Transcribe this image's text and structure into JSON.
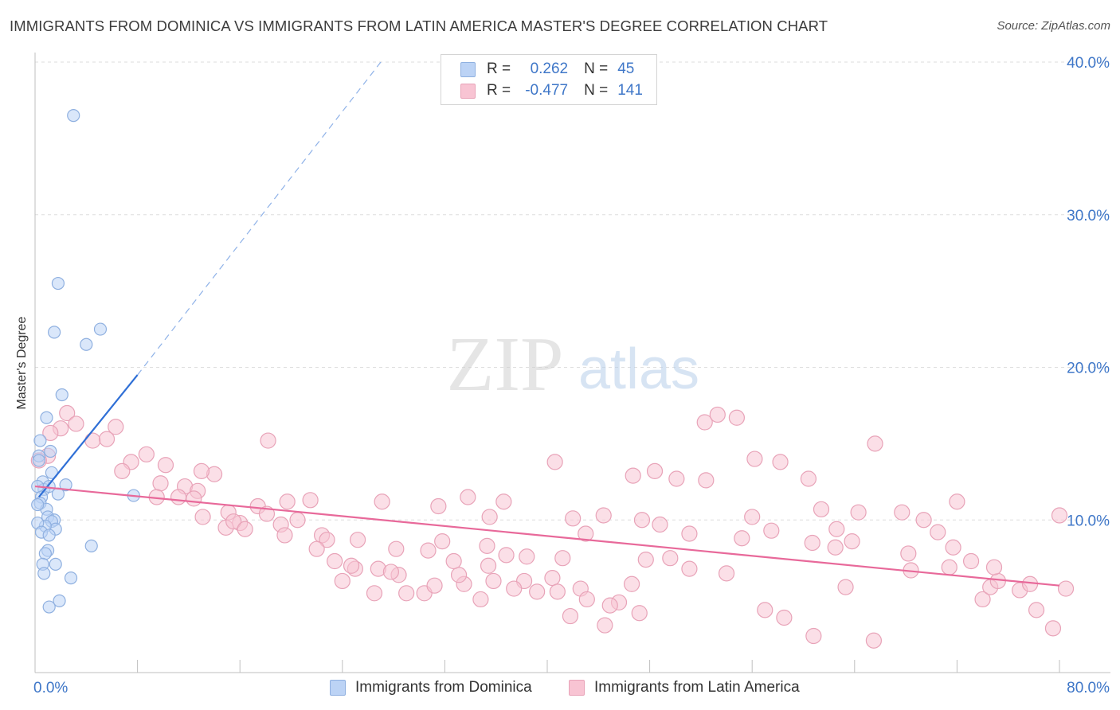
{
  "title": "IMMIGRANTS FROM DOMINICA VS IMMIGRANTS FROM LATIN AMERICA MASTER'S DEGREE CORRELATION CHART",
  "source": "Source: ZipAtlas.com",
  "watermark": {
    "zip": "ZIP",
    "atlas": "atlas"
  },
  "legend": {
    "series1": {
      "r_label": "R =",
      "r_value": "0.262",
      "n_label": "N =",
      "n_value": "45"
    },
    "series2": {
      "r_label": "R =",
      "r_value": "-0.477",
      "n_label": "N =",
      "n_value": "141"
    }
  },
  "bottom_legend": {
    "series1": "Immigrants from Dominica",
    "series2": "Immigrants from Latin America"
  },
  "colors": {
    "series1_fill": "#bcd3f5",
    "series1_stroke": "#8fb0e0",
    "series1_line": "#2f6fd6",
    "series2_fill": "#f8c4d3",
    "series2_stroke": "#e8a3b8",
    "series2_line": "#e8699a",
    "axis_text": "#3f77c8"
  },
  "chart_data": {
    "type": "scatter",
    "title": "IMMIGRANTS FROM DOMINICA VS IMMIGRANTS FROM LATIN AMERICA MASTER'S DEGREE CORRELATION CHART",
    "xlabel": "",
    "ylabel": "Master's Degree",
    "xlim": [
      0,
      80
    ],
    "ylim": [
      0,
      40
    ],
    "x_tick_labels": [
      "0.0%",
      "80.0%"
    ],
    "y_ticks": [
      10,
      20,
      30,
      40
    ],
    "y_tick_labels": [
      "10.0%",
      "20.0%",
      "30.0%",
      "40.0%"
    ],
    "grid": true,
    "series": [
      {
        "name": "Immigrants from Dominica",
        "R": 0.262,
        "N": 45,
        "trend": {
          "x": [
            0.3,
            8.0
          ],
          "y": [
            11.5,
            19.5
          ],
          "extended_to": [
            27.0,
            40.0
          ]
        },
        "points": [
          [
            3.0,
            36.5
          ],
          [
            1.8,
            25.5
          ],
          [
            5.1,
            22.5
          ],
          [
            1.5,
            22.3
          ],
          [
            4.0,
            21.5
          ],
          [
            2.1,
            18.2
          ],
          [
            0.9,
            16.7
          ],
          [
            0.4,
            15.2
          ],
          [
            1.2,
            14.5
          ],
          [
            0.3,
            14.2
          ],
          [
            0.6,
            12.5
          ],
          [
            0.7,
            12.0
          ],
          [
            0.2,
            12.2
          ],
          [
            1.1,
            12.2
          ],
          [
            2.4,
            12.3
          ],
          [
            1.8,
            11.7
          ],
          [
            0.5,
            11.5
          ],
          [
            0.4,
            11.1
          ],
          [
            7.7,
            11.6
          ],
          [
            0.9,
            10.7
          ],
          [
            1.0,
            10.2
          ],
          [
            1.5,
            10.0
          ],
          [
            1.3,
            9.9
          ],
          [
            1.6,
            9.4
          ],
          [
            0.8,
            9.6
          ],
          [
            0.2,
            9.8
          ],
          [
            0.5,
            9.2
          ],
          [
            1.1,
            9.0
          ],
          [
            4.4,
            8.3
          ],
          [
            1.0,
            8.0
          ],
          [
            0.8,
            7.8
          ],
          [
            0.6,
            7.1
          ],
          [
            1.6,
            7.1
          ],
          [
            0.7,
            6.5
          ],
          [
            2.8,
            6.2
          ],
          [
            1.9,
            4.7
          ],
          [
            1.1,
            4.3
          ],
          [
            0.3,
            13.9
          ],
          [
            0.2,
            11.0
          ],
          [
            1.3,
            13.1
          ]
        ]
      },
      {
        "name": "Immigrants from Latin America",
        "R": -0.477,
        "N": 141,
        "trend": {
          "x": [
            0.0,
            80.0
          ],
          "y": [
            12.2,
            5.7
          ]
        },
        "points": [
          [
            2.5,
            17.0
          ],
          [
            3.2,
            16.3
          ],
          [
            2.0,
            16.0
          ],
          [
            6.3,
            16.1
          ],
          [
            1.2,
            15.7
          ],
          [
            4.5,
            15.2
          ],
          [
            5.6,
            15.3
          ],
          [
            18.2,
            15.2
          ],
          [
            1.0,
            14.2
          ],
          [
            0.3,
            13.9
          ],
          [
            8.7,
            14.3
          ],
          [
            7.5,
            13.8
          ],
          [
            10.2,
            13.6
          ],
          [
            6.8,
            13.2
          ],
          [
            14.0,
            13.0
          ],
          [
            9.8,
            12.4
          ],
          [
            11.7,
            12.2
          ],
          [
            12.7,
            11.9
          ],
          [
            11.2,
            11.5
          ],
          [
            9.5,
            11.5
          ],
          [
            12.4,
            11.4
          ],
          [
            19.7,
            11.2
          ],
          [
            21.5,
            11.3
          ],
          [
            17.4,
            10.9
          ],
          [
            15.1,
            10.5
          ],
          [
            18.1,
            10.4
          ],
          [
            13.1,
            10.2
          ],
          [
            20.5,
            10.0
          ],
          [
            16.0,
            9.8
          ],
          [
            19.2,
            9.7
          ],
          [
            14.9,
            9.5
          ],
          [
            22.4,
            9.0
          ],
          [
            19.5,
            9.0
          ],
          [
            22.8,
            8.7
          ],
          [
            25.2,
            8.7
          ],
          [
            22.0,
            8.1
          ],
          [
            23.4,
            7.3
          ],
          [
            28.2,
            8.1
          ],
          [
            30.7,
            8.0
          ],
          [
            31.8,
            8.6
          ],
          [
            25.0,
            6.8
          ],
          [
            26.8,
            6.8
          ],
          [
            28.4,
            6.4
          ],
          [
            24.7,
            7.0
          ],
          [
            24.0,
            6.0
          ],
          [
            29.0,
            5.2
          ],
          [
            30.4,
            5.2
          ],
          [
            31.2,
            5.7
          ],
          [
            33.8,
            11.5
          ],
          [
            35.5,
            10.2
          ],
          [
            35.3,
            8.3
          ],
          [
            33.5,
            5.8
          ],
          [
            33.1,
            6.4
          ],
          [
            35.8,
            6.0
          ],
          [
            38.2,
            6.0
          ],
          [
            36.8,
            7.7
          ],
          [
            35.4,
            7.0
          ],
          [
            37.4,
            5.5
          ],
          [
            34.8,
            4.8
          ],
          [
            40.4,
            6.2
          ],
          [
            41.2,
            7.5
          ],
          [
            40.8,
            5.3
          ],
          [
            41.8,
            3.7
          ],
          [
            42.6,
            5.5
          ],
          [
            44.4,
            10.3
          ],
          [
            42.0,
            10.1
          ],
          [
            46.6,
            5.8
          ],
          [
            47.2,
            3.9
          ],
          [
            46.7,
            12.9
          ],
          [
            45.6,
            4.6
          ],
          [
            47.4,
            10.0
          ],
          [
            48.8,
            9.7
          ],
          [
            49.6,
            7.5
          ],
          [
            47.7,
            7.4
          ],
          [
            51.1,
            6.8
          ],
          [
            50.1,
            12.7
          ],
          [
            52.4,
            12.6
          ],
          [
            55.2,
            8.8
          ],
          [
            54.0,
            6.5
          ],
          [
            52.3,
            16.4
          ],
          [
            53.3,
            16.9
          ],
          [
            54.8,
            16.7
          ],
          [
            58.2,
            13.8
          ],
          [
            57.5,
            9.3
          ],
          [
            57.0,
            4.1
          ],
          [
            58.5,
            3.6
          ],
          [
            61.4,
            10.7
          ],
          [
            60.7,
            8.5
          ],
          [
            62.5,
            8.2
          ],
          [
            62.6,
            9.4
          ],
          [
            63.8,
            8.6
          ],
          [
            64.3,
            10.5
          ],
          [
            63.3,
            5.6
          ],
          [
            65.6,
            15.0
          ],
          [
            67.7,
            10.5
          ],
          [
            68.2,
            7.8
          ],
          [
            68.4,
            6.7
          ],
          [
            69.4,
            10.0
          ],
          [
            70.5,
            9.2
          ],
          [
            71.7,
            8.2
          ],
          [
            73.1,
            7.3
          ],
          [
            74.0,
            4.8
          ],
          [
            74.6,
            5.6
          ],
          [
            75.2,
            6.0
          ],
          [
            76.9,
            5.4
          ],
          [
            78.2,
            4.1
          ],
          [
            79.5,
            2.9
          ],
          [
            80.0,
            10.3
          ],
          [
            80.5,
            5.5
          ],
          [
            65.5,
            2.1
          ],
          [
            60.8,
            2.4
          ],
          [
            72.0,
            11.2
          ],
          [
            43.1,
            4.8
          ],
          [
            44.9,
            4.4
          ],
          [
            44.5,
            3.1
          ],
          [
            56.2,
            14.0
          ],
          [
            48.4,
            13.2
          ],
          [
            40.6,
            13.8
          ],
          [
            43.0,
            9.1
          ],
          [
            26.5,
            5.2
          ],
          [
            38.4,
            7.6
          ],
          [
            27.8,
            6.6
          ],
          [
            32.7,
            7.3
          ],
          [
            31.5,
            10.9
          ],
          [
            27.1,
            11.2
          ],
          [
            36.6,
            11.2
          ],
          [
            56.0,
            10.2
          ],
          [
            51.1,
            9.1
          ],
          [
            71.4,
            6.9
          ],
          [
            77.7,
            5.8
          ],
          [
            74.9,
            6.9
          ],
          [
            39.2,
            5.3
          ],
          [
            60.4,
            12.7
          ],
          [
            15.5,
            9.9
          ],
          [
            13.0,
            13.2
          ],
          [
            16.4,
            9.4
          ]
        ]
      }
    ]
  }
}
